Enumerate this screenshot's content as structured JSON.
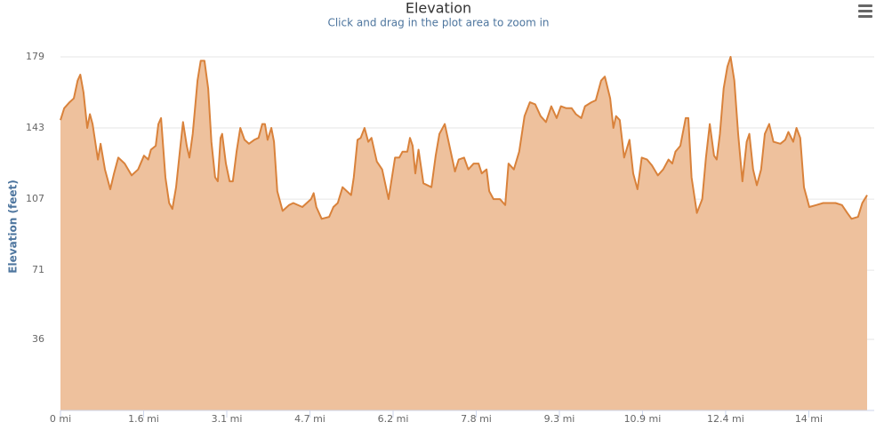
{
  "chart_data": {
    "type": "area",
    "title": "Elevation",
    "subtitle": "Click and drag in the plot area to zoom in",
    "y_label": "Elevation (feet)",
    "color": "#d9823b",
    "fill_color": "#eec19d",
    "grid": true,
    "xlim": [
      0,
      15.07
    ],
    "ylim": [
      0,
      179
    ],
    "xticks": [
      {
        "value": 0,
        "label": "0 mi"
      },
      {
        "value": 1.553,
        "label": "1.6 mi"
      },
      {
        "value": 3.107,
        "label": "3.1 mi"
      },
      {
        "value": 4.66,
        "label": "4.7 mi"
      },
      {
        "value": 6.214,
        "label": "6.2 mi"
      },
      {
        "value": 7.767,
        "label": "7.8 mi"
      },
      {
        "value": 9.321,
        "label": "9.3 mi"
      },
      {
        "value": 10.874,
        "label": "10.9 mi"
      },
      {
        "value": 12.427,
        "label": "12.4 mi"
      },
      {
        "value": 13.981,
        "label": "14 mi"
      }
    ],
    "yticks": [
      36,
      71,
      107,
      143,
      179
    ],
    "x": [
      0,
      0.07,
      0.17,
      0.25,
      0.32,
      0.37,
      0.43,
      0.5,
      0.55,
      0.6,
      0.7,
      0.75,
      0.83,
      0.93,
      1.0,
      1.08,
      1.2,
      1.33,
      1.45,
      1.56,
      1.64,
      1.69,
      1.78,
      1.83,
      1.88,
      1.96,
      2.03,
      2.09,
      2.16,
      2.23,
      2.29,
      2.36,
      2.41,
      2.47,
      2.56,
      2.62,
      2.69,
      2.76,
      2.82,
      2.89,
      2.94,
      2.99,
      3.02,
      3.09,
      3.16,
      3.22,
      3.29,
      3.36,
      3.44,
      3.52,
      3.62,
      3.7,
      3.77,
      3.82,
      3.87,
      3.94,
      3.99,
      4.05,
      4.15,
      4.27,
      4.35,
      4.52,
      4.68,
      4.73,
      4.78,
      4.88,
      5.02,
      5.1,
      5.18,
      5.27,
      5.35,
      5.43,
      5.48,
      5.55,
      5.61,
      5.68,
      5.75,
      5.81,
      5.91,
      6.01,
      6.13,
      6.25,
      6.33,
      6.39,
      6.48,
      6.53,
      6.58,
      6.63,
      6.69,
      6.78,
      6.93,
      7.01,
      7.08,
      7.18,
      7.26,
      7.37,
      7.44,
      7.54,
      7.62,
      7.72,
      7.81,
      7.87,
      7.96,
      8.01,
      8.09,
      8.21,
      8.31,
      8.37,
      8.47,
      8.57,
      8.67,
      8.77,
      8.87,
      8.97,
      9.07,
      9.17,
      9.27,
      9.35,
      9.45,
      9.55,
      9.63,
      9.73,
      9.8,
      9.92,
      10.0,
      10.1,
      10.17,
      10.27,
      10.33,
      10.38,
      10.45,
      10.53,
      10.63,
      10.7,
      10.78,
      10.86,
      10.96,
      11.05,
      11.16,
      11.26,
      11.36,
      11.43,
      11.49,
      11.58,
      11.68,
      11.73,
      11.79,
      11.89,
      11.99,
      12.06,
      12.13,
      12.21,
      12.26,
      12.32,
      12.39,
      12.46,
      12.52,
      12.59,
      12.66,
      12.74,
      12.82,
      12.87,
      12.94,
      13.01,
      13.09,
      13.16,
      13.24,
      13.32,
      13.45,
      13.54,
      13.6,
      13.69,
      13.75,
      13.82,
      13.89,
      13.99,
      14.12,
      14.25,
      14.35,
      14.48,
      14.6,
      14.7,
      14.78,
      14.9,
      14.98,
      15.07
    ],
    "values": [
      147,
      153,
      156,
      158,
      167,
      170,
      161,
      143,
      150,
      145,
      127,
      135,
      122,
      112,
      120,
      128,
      125,
      119,
      122,
      129,
      127,
      132,
      134,
      145,
      148,
      118,
      105,
      102,
      113,
      131,
      146,
      134,
      128,
      140,
      167,
      177,
      177,
      163,
      136,
      118,
      116,
      138,
      140,
      125,
      116,
      116,
      131,
      143,
      137,
      135,
      137,
      138,
      145,
      145,
      137,
      143,
      136,
      111,
      101,
      104,
      105,
      103,
      107,
      110,
      103,
      97,
      98,
      103,
      105,
      113,
      111,
      109,
      118,
      137,
      138,
      143,
      136,
      138,
      126,
      122,
      107,
      128,
      128,
      131,
      131,
      138,
      134,
      120,
      132,
      115,
      113,
      129,
      140,
      145,
      135,
      121,
      127,
      128,
      122,
      125,
      125,
      120,
      122,
      111,
      107,
      107,
      104,
      125,
      122,
      131,
      149,
      156,
      155,
      149,
      146,
      154,
      148,
      154,
      153,
      153,
      150,
      148,
      154,
      156,
      157,
      167,
      169,
      158,
      143,
      149,
      147,
      128,
      137,
      120,
      112,
      128,
      127,
      124,
      119,
      122,
      127,
      125,
      131,
      134,
      148,
      148,
      118,
      100,
      107,
      128,
      145,
      129,
      127,
      140,
      163,
      174,
      179,
      167,
      140,
      116,
      136,
      140,
      122,
      114,
      122,
      140,
      145,
      136,
      135,
      137,
      141,
      136,
      143,
      138,
      113,
      103,
      104,
      105,
      105,
      105,
      104,
      100,
      97,
      98,
      105,
      109
    ]
  }
}
